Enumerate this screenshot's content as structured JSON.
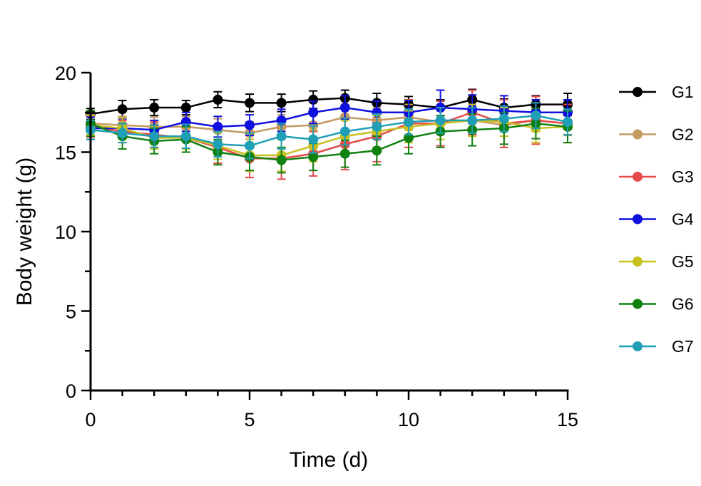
{
  "chart_data": {
    "type": "line",
    "title": "",
    "xlabel": "Time (d)",
    "ylabel": "Body weight (g)",
    "xlim": [
      0,
      15
    ],
    "ylim": [
      0,
      20
    ],
    "x_ticks": [
      "0",
      "5",
      "10",
      "15"
    ],
    "y_ticks": [
      "0",
      "5",
      "10",
      "15",
      "20"
    ],
    "grid": false,
    "legend_position": "right",
    "x": [
      0,
      1,
      2,
      3,
      4,
      5,
      6,
      7,
      8,
      9,
      10,
      11,
      12,
      13,
      14,
      15
    ],
    "series": [
      {
        "name": "G1",
        "color": "#000000",
        "values": [
          17.4,
          17.7,
          17.8,
          17.8,
          18.3,
          18.1,
          18.1,
          18.3,
          18.4,
          18.1,
          18.0,
          17.8,
          18.3,
          17.8,
          18.0,
          18.0
        ],
        "errors": [
          0.35,
          0.55,
          0.5,
          0.45,
          0.5,
          0.55,
          0.55,
          0.55,
          0.5,
          0.6,
          0.5,
          0.5,
          0.65,
          0.55,
          0.55,
          0.7
        ]
      },
      {
        "name": "G2",
        "color": "#c49a61",
        "values": [
          16.8,
          16.7,
          16.6,
          16.6,
          16.4,
          16.2,
          16.6,
          16.7,
          17.2,
          17.0,
          17.2,
          16.9,
          17.0,
          16.7,
          17.0,
          16.8
        ],
        "errors": [
          0.55,
          0.55,
          0.6,
          0.65,
          0.7,
          0.7,
          0.75,
          0.8,
          0.8,
          0.8,
          0.8,
          0.8,
          0.8,
          0.7,
          0.7,
          0.75
        ]
      },
      {
        "name": "G3",
        "color": "#e64a4a",
        "values": [
          16.6,
          16.3,
          16.1,
          15.9,
          15.3,
          14.6,
          14.6,
          14.9,
          15.5,
          16.0,
          16.8,
          16.8,
          17.5,
          16.8,
          17.0,
          16.8
        ],
        "errors": [
          0.65,
          0.7,
          0.8,
          0.9,
          1.0,
          1.2,
          1.3,
          1.4,
          1.6,
          1.6,
          1.5,
          1.4,
          1.4,
          1.5,
          1.5,
          1.2
        ]
      },
      {
        "name": "G4",
        "color": "#1010e0",
        "values": [
          16.5,
          16.5,
          16.4,
          16.9,
          16.6,
          16.7,
          17.0,
          17.5,
          17.8,
          17.5,
          17.5,
          17.8,
          17.7,
          17.6,
          17.5,
          17.5
        ],
        "errors": [
          0.7,
          0.6,
          0.6,
          0.6,
          0.65,
          0.65,
          0.7,
          0.7,
          0.75,
          0.7,
          0.75,
          1.1,
          0.9,
          0.95,
          0.8,
          0.8
        ]
      },
      {
        "name": "G5",
        "color": "#c8c020",
        "values": [
          16.7,
          16.5,
          15.9,
          15.9,
          15.4,
          14.8,
          14.8,
          15.4,
          16.0,
          16.3,
          16.6,
          16.8,
          17.0,
          16.9,
          16.5,
          16.6
        ],
        "errors": [
          0.6,
          0.65,
          0.7,
          0.7,
          0.85,
          1.0,
          1.0,
          1.0,
          1.0,
          1.0,
          1.0,
          1.0,
          1.0,
          0.9,
          0.9,
          1.0
        ]
      },
      {
        "name": "G6",
        "color": "#108010",
        "values": [
          16.8,
          16.0,
          15.7,
          15.8,
          15.0,
          14.7,
          14.5,
          14.7,
          14.9,
          15.1,
          15.9,
          16.3,
          16.4,
          16.5,
          16.8,
          16.6
        ],
        "errors": [
          0.8,
          0.8,
          0.8,
          0.8,
          0.8,
          0.85,
          0.8,
          0.85,
          0.85,
          0.9,
          1.0,
          1.0,
          1.0,
          1.0,
          0.95,
          1.0
        ]
      },
      {
        "name": "G7",
        "color": "#1f9fb5",
        "values": [
          16.4,
          16.2,
          16.0,
          16.0,
          15.5,
          15.4,
          16.0,
          15.8,
          16.3,
          16.6,
          16.9,
          17.0,
          17.0,
          17.1,
          17.3,
          16.9
        ],
        "errors": [
          0.6,
          0.6,
          0.7,
          0.75,
          0.8,
          0.8,
          0.8,
          0.85,
          0.85,
          0.8,
          0.8,
          0.8,
          0.8,
          0.8,
          0.8,
          0.8
        ]
      }
    ]
  }
}
